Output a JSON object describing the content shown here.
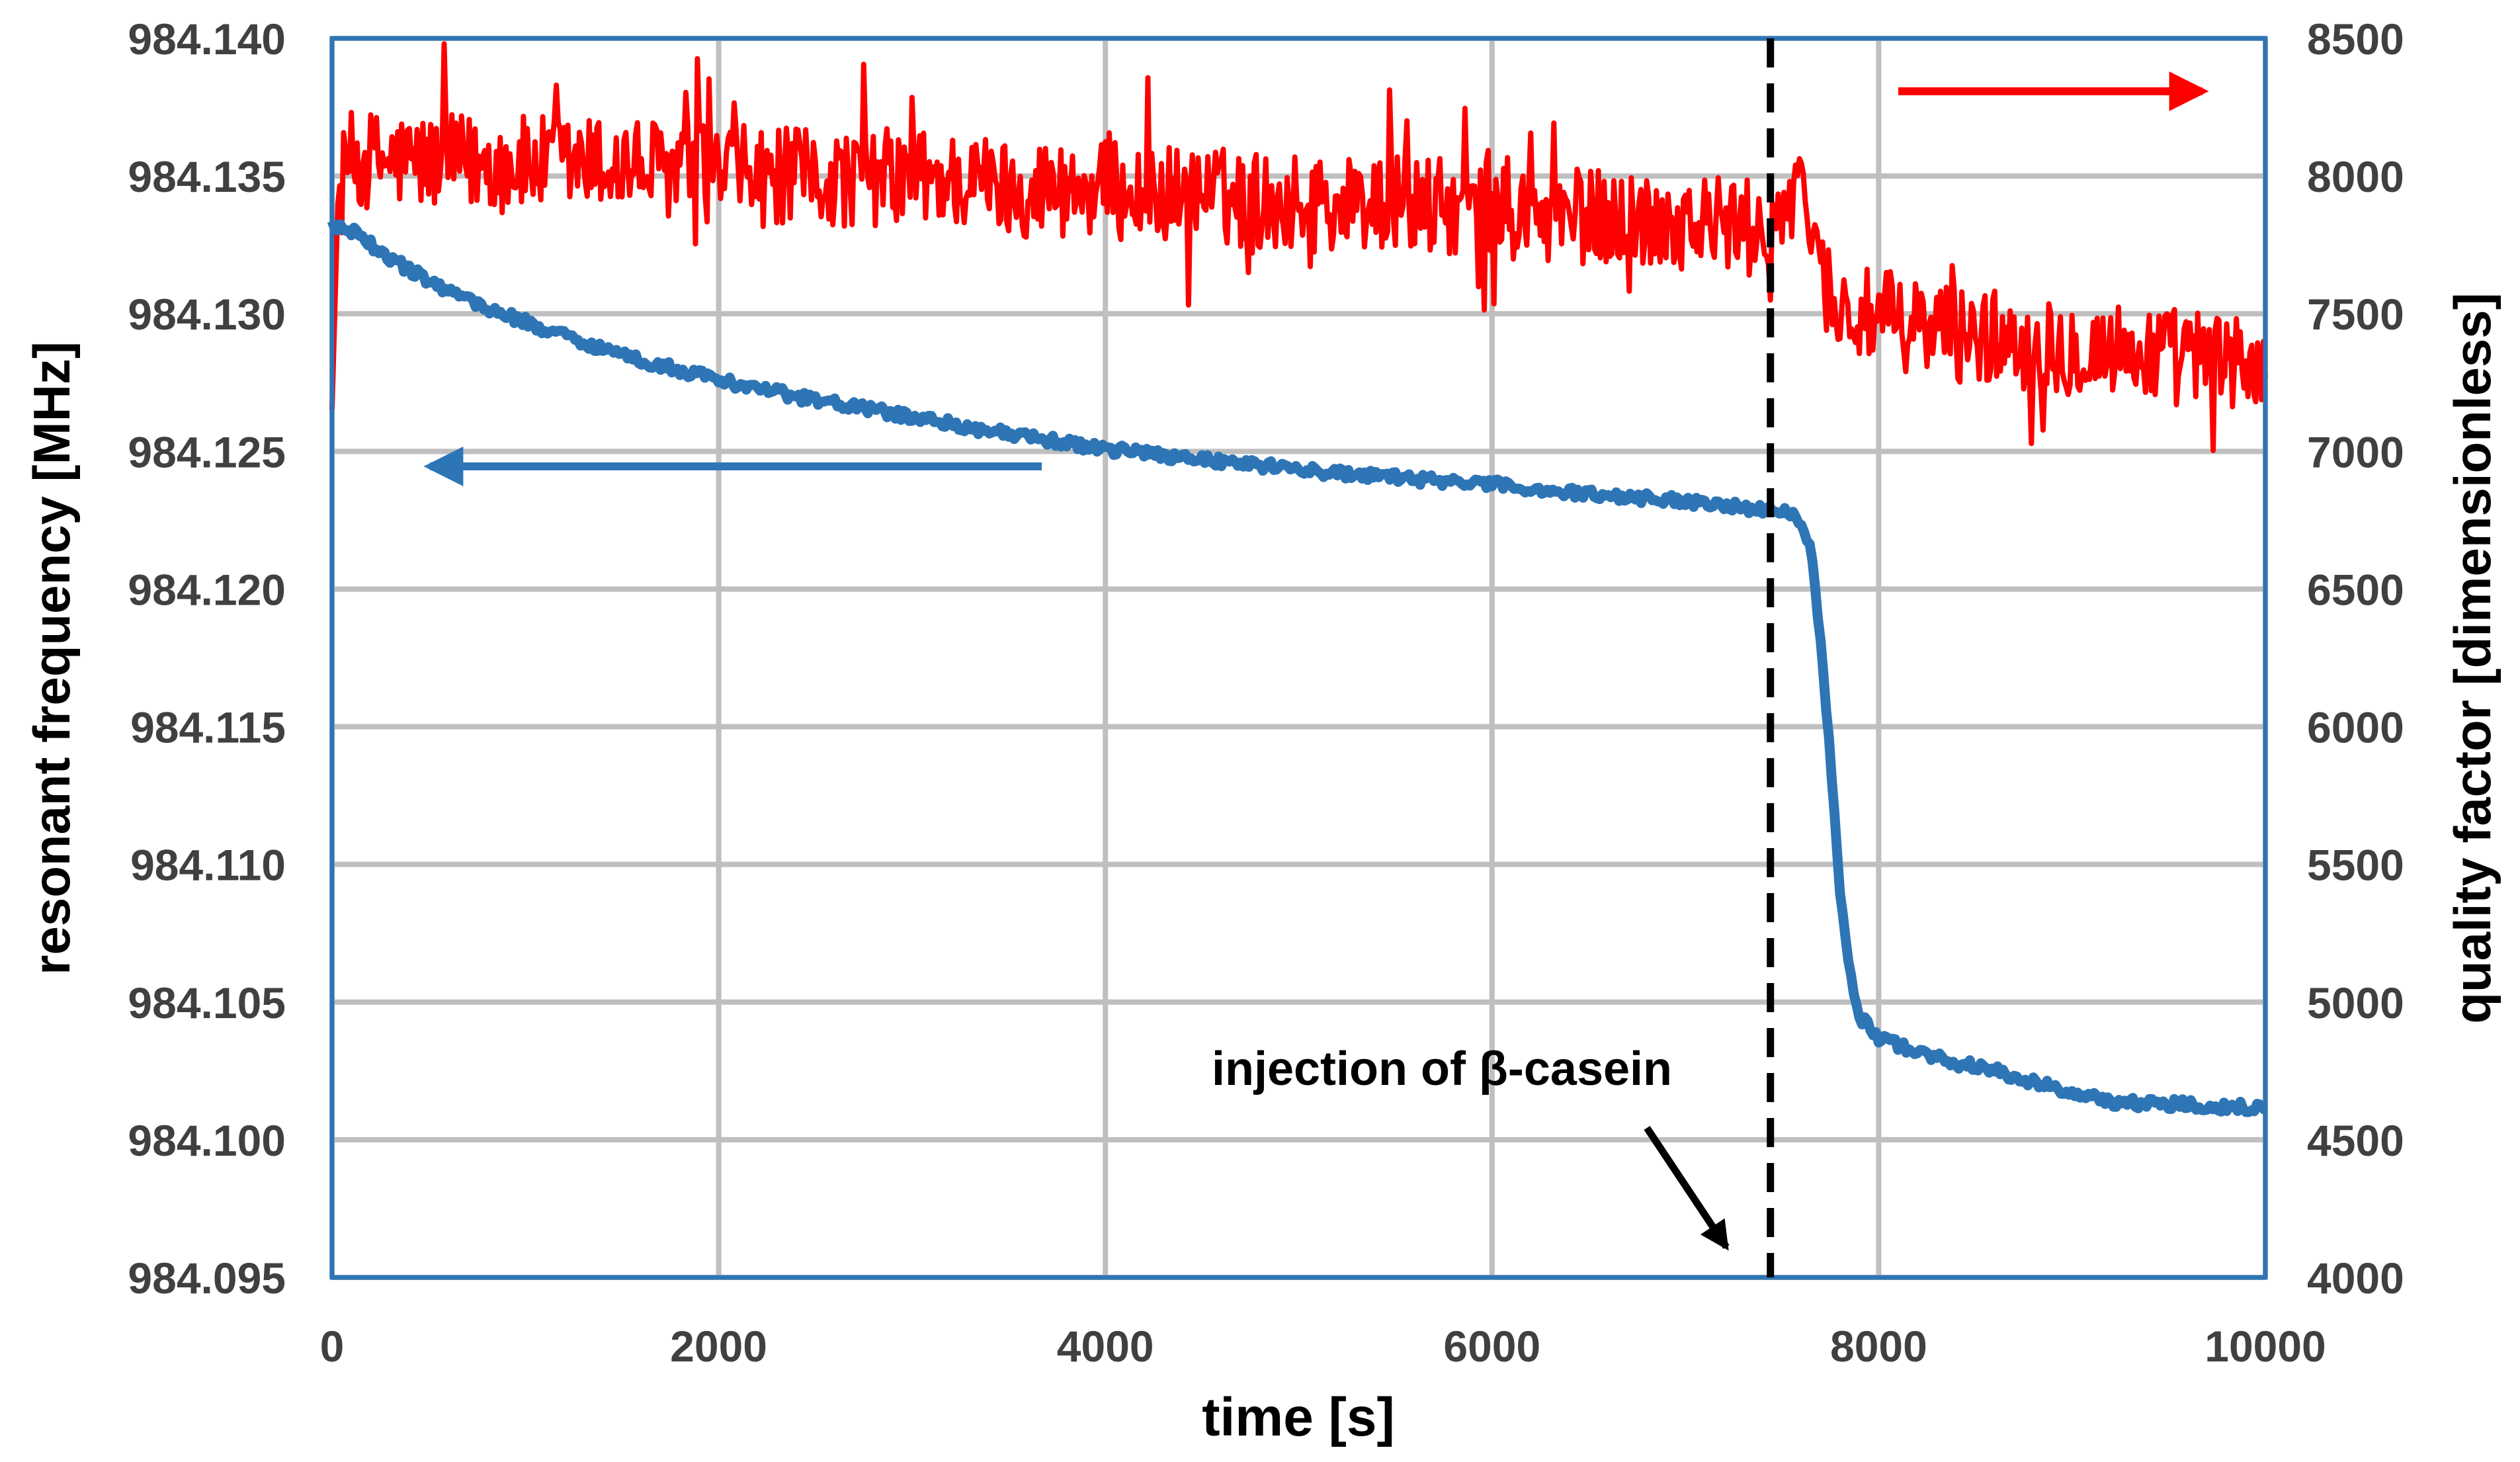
{
  "chart_data": {
    "type": "line",
    "title": "",
    "xlabel": "time [s]",
    "ylabel_left": "resonant frequency [MHz]",
    "ylabel_right": "quality factor [dimensionless]",
    "xlim": [
      0,
      10000
    ],
    "ylim_left": [
      984.095,
      984.14
    ],
    "ylim_right": [
      4000,
      8500
    ],
    "x_ticks": [
      "0",
      "2000",
      "4000",
      "6000",
      "8000",
      "10000"
    ],
    "y_ticks_left": [
      "984.095",
      "984.100",
      "984.105",
      "984.110",
      "984.115",
      "984.120",
      "984.125",
      "984.130",
      "984.135",
      "984.140"
    ],
    "y_ticks_right": [
      "4000",
      "4500",
      "5000",
      "5500",
      "6000",
      "6500",
      "7000",
      "7500",
      "8000",
      "8500"
    ],
    "grid": true,
    "series": [
      {
        "name": "resonant frequency",
        "axis": "left",
        "color": "#2E75B6",
        "x": [
          0,
          100,
          300,
          500,
          800,
          1200,
          1600,
          2000,
          2400,
          2800,
          3200,
          3600,
          4000,
          4400,
          4800,
          5200,
          5600,
          6000,
          6400,
          6800,
          7200,
          7440,
          7550,
          7600,
          7650,
          7700,
          7750,
          7800,
          7850,
          7900,
          8000,
          8200,
          8400,
          8600,
          8800,
          9000,
          9200,
          9400,
          9600,
          9800,
          10000
        ],
        "values": [
          984.1332,
          984.133,
          984.132,
          984.1312,
          984.1302,
          984.1292,
          984.1283,
          984.1276,
          984.127,
          984.1265,
          984.126,
          984.1255,
          984.1251,
          984.1248,
          984.1245,
          984.1242,
          984.124,
          984.1238,
          984.1235,
          984.1233,
          984.1231,
          984.1228,
          984.1228,
          984.1225,
          984.1215,
          984.118,
          984.114,
          984.109,
          984.106,
          984.1045,
          984.1037,
          984.1032,
          984.1028,
          984.1025,
          984.1021,
          984.1017,
          984.1014,
          984.1013,
          984.1013,
          984.1012,
          984.1012
        ],
        "noise_amplitude": 0.0002
      },
      {
        "name": "quality factor",
        "axis": "right",
        "color": "#FF0000",
        "x": [
          0,
          30,
          80,
          150,
          500,
          1000,
          1500,
          2000,
          2500,
          3000,
          3500,
          4000,
          4500,
          5000,
          5500,
          6000,
          6500,
          7000,
          7400,
          7500,
          7650,
          7700,
          7800,
          8000,
          8500,
          9000,
          9500,
          10000
        ],
        "values": [
          7150,
          7900,
          8050,
          8060,
          8050,
          8040,
          8040,
          8010,
          7990,
          8000,
          7960,
          7950,
          7930,
          7900,
          7900,
          7870,
          7850,
          7840,
          7800,
          7880,
          7900,
          7650,
          7500,
          7480,
          7420,
          7380,
          7350,
          7300
        ],
        "noise_amplitude": 180
      }
    ],
    "annotations": {
      "injection_label": "injection of β-casein",
      "injection_time": 7440,
      "blue_arrow_direction": "left",
      "red_arrow_direction": "right"
    }
  },
  "colors": {
    "frequency": "#2E75B6",
    "quality": "#FF0000",
    "frame": "#2E75B6",
    "grid": "#BFBFBF",
    "marker": "#000000"
  }
}
